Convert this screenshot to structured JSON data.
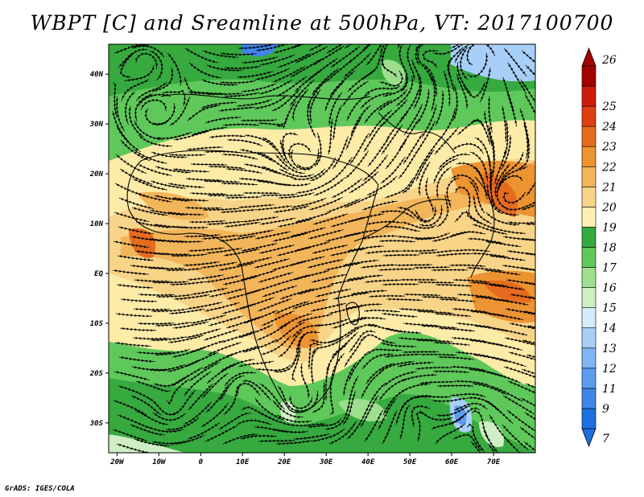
{
  "title": "WBPT [C] and Sreamline at 500hPa, VT: 2017100700",
  "footer": "GrADS: IGES/COLA",
  "map": {
    "lon_range": [
      -22,
      80
    ],
    "lat_range": [
      -36,
      46
    ],
    "lat_ticks": [
      {
        "value": 40,
        "label": "40N"
      },
      {
        "value": 30,
        "label": "30N"
      },
      {
        "value": 20,
        "label": "20N"
      },
      {
        "value": 10,
        "label": "10N"
      },
      {
        "value": 0,
        "label": "EQ"
      },
      {
        "value": -10,
        "label": "10S"
      },
      {
        "value": -20,
        "label": "20S"
      },
      {
        "value": -30,
        "label": "30S"
      }
    ],
    "lon_ticks": [
      {
        "value": -20,
        "label": "20W"
      },
      {
        "value": -10,
        "label": "10W"
      },
      {
        "value": 0,
        "label": "0"
      },
      {
        "value": 10,
        "label": "10E"
      },
      {
        "value": 20,
        "label": "20E"
      },
      {
        "value": 30,
        "label": "30E"
      },
      {
        "value": 40,
        "label": "40E"
      },
      {
        "value": 50,
        "label": "50E"
      },
      {
        "value": 60,
        "label": "60E"
      },
      {
        "value": 70,
        "label": "70E"
      }
    ]
  },
  "colorbar": {
    "levels": [
      "7",
      "9",
      "11",
      "12",
      "13",
      "14",
      "15",
      "16",
      "17",
      "18",
      "19",
      "20",
      "21",
      "22",
      "23",
      "24",
      "25",
      "26"
    ],
    "colors": [
      "#1e6fe0",
      "#3f86e8",
      "#5e9cef",
      "#80b5f3",
      "#a7cff7",
      "#d6ecfb",
      "#cfeec4",
      "#9ddf8f",
      "#5fc85a",
      "#36a93f",
      "#fdf0b4",
      "#f8d488",
      "#f2b55a",
      "#ec9332",
      "#e56b1e",
      "#dd3f10",
      "#cc1d0a",
      "#a40000"
    ]
  }
}
